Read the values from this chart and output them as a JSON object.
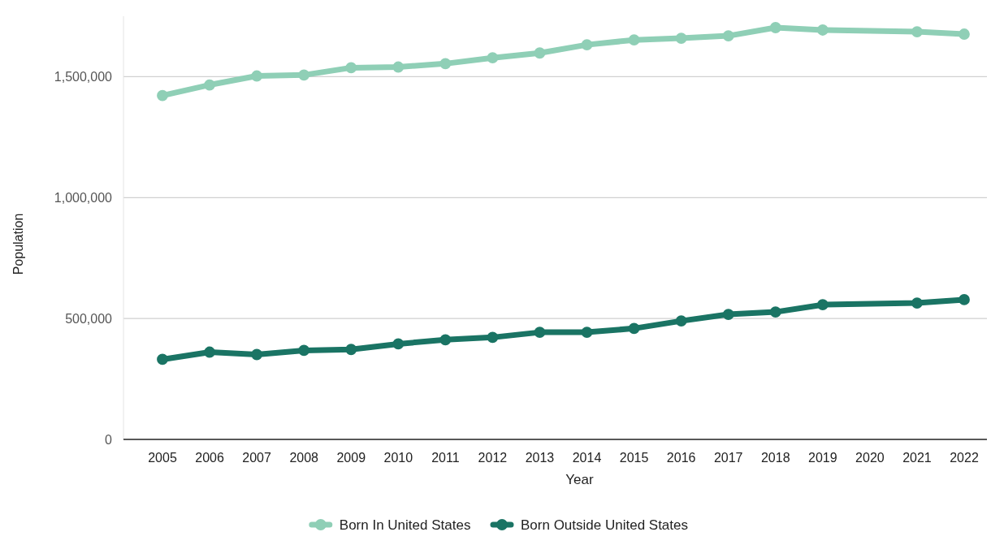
{
  "chart_data": {
    "type": "line",
    "xlabel": "Year",
    "ylabel": "Population",
    "categories": [
      "2005",
      "2006",
      "2007",
      "2008",
      "2009",
      "2010",
      "2011",
      "2012",
      "2013",
      "2014",
      "2015",
      "2016",
      "2017",
      "2018",
      "2019",
      "2020",
      "2021",
      "2022"
    ],
    "series": [
      {
        "name": "Born In United States",
        "color": "#8fcfb6",
        "values": [
          1422000,
          1466000,
          1503000,
          1507000,
          1537000,
          1540000,
          1554000,
          1578000,
          1598000,
          1632000,
          1652000,
          1659000,
          1669000,
          1703000,
          1693000,
          null,
          1686000,
          1676000
        ]
      },
      {
        "name": "Born Outside United States",
        "color": "#1a7464",
        "values": [
          331000,
          361000,
          351000,
          368000,
          372000,
          395000,
          412000,
          422000,
          443000,
          443000,
          459000,
          490000,
          517000,
          527000,
          557000,
          null,
          564000,
          578000
        ]
      }
    ],
    "ylim": [
      0,
      1750000
    ],
    "yticks": [
      0,
      {
        "value": 500000,
        "label": "500,000"
      },
      {
        "value": 1000000,
        "label": "1,000,000"
      },
      {
        "value": 1500000,
        "label": "1,500,000"
      }
    ],
    "grid": "y",
    "legend": "bottom",
    "marker": "circle",
    "line_style": "solid"
  }
}
